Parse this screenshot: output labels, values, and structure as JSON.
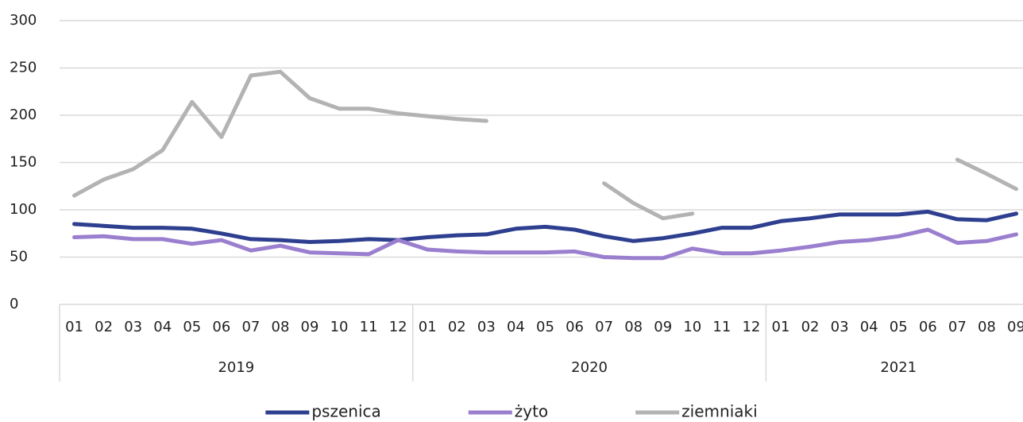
{
  "chart_data": {
    "type": "line",
    "categories": [
      "01",
      "02",
      "03",
      "04",
      "05",
      "06",
      "07",
      "08",
      "09",
      "10",
      "11",
      "12",
      "01",
      "02",
      "03",
      "04",
      "05",
      "06",
      "07",
      "08",
      "09",
      "10",
      "11",
      "12",
      "01",
      "02",
      "03",
      "04",
      "05",
      "06",
      "07",
      "08",
      "09"
    ],
    "group_labels": [
      "2019",
      "2020",
      "2021"
    ],
    "series": [
      {
        "name": "pszenica",
        "color": "#2e3f8f",
        "values": [
          85,
          83,
          81,
          81,
          80,
          75,
          69,
          68,
          66,
          67,
          69,
          68,
          71,
          73,
          74,
          80,
          82,
          79,
          72,
          67,
          70,
          75,
          81,
          81,
          88,
          91,
          95,
          95,
          95,
          98,
          90,
          89,
          96
        ]
      },
      {
        "name": "żyto",
        "color": "#9b7fcf",
        "values": [
          71,
          72,
          69,
          69,
          64,
          68,
          57,
          62,
          55,
          54,
          53,
          68,
          58,
          56,
          55,
          55,
          55,
          56,
          50,
          49,
          49,
          59,
          54,
          54,
          57,
          61,
          66,
          68,
          72,
          79,
          65,
          67,
          74
        ]
      },
      {
        "name": "ziemniaki",
        "color": "#b3b3b3",
        "values": [
          115,
          132,
          143,
          163,
          214,
          177,
          242,
          246,
          218,
          207,
          207,
          202,
          199,
          196,
          194,
          null,
          null,
          null,
          128,
          107,
          91,
          96,
          null,
          null,
          null,
          null,
          null,
          null,
          null,
          null,
          153,
          138,
          122
        ]
      }
    ],
    "ylim": [
      0,
      300
    ],
    "yticks": [
      0,
      50,
      100,
      150,
      200,
      250,
      300
    ],
    "grid": true,
    "legend": "bottom"
  }
}
